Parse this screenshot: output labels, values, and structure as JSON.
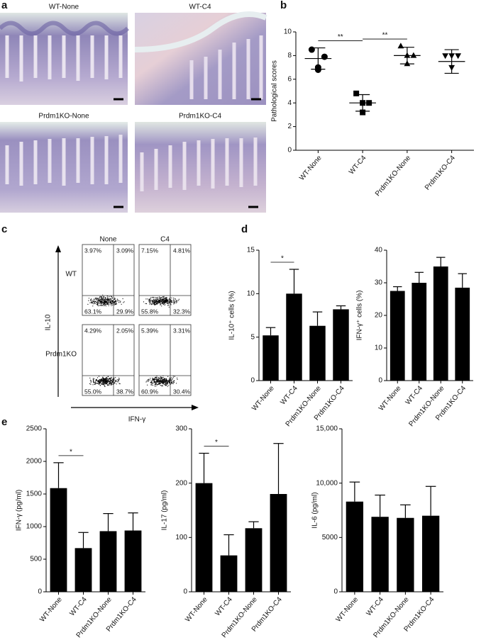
{
  "panel_labels": [
    "a",
    "b",
    "c",
    "d",
    "e"
  ],
  "histology": {
    "titles": [
      "WT-None",
      "WT-C4",
      "Prdm1KO-None",
      "Prdm1KO-C4"
    ]
  },
  "flow": {
    "columns": [
      "None",
      "C4"
    ],
    "rows": [
      "WT",
      "Prdm1KO"
    ],
    "y_label": "IL-10",
    "x_label": "IFN-γ",
    "quadrants": [
      [
        [
          "3.97%",
          "3.09%",
          "63.1%",
          "29.9%"
        ],
        [
          "7.15%",
          "4.81%",
          "55.8%",
          "32.3%"
        ]
      ],
      [
        [
          "4.29%",
          "2.05%",
          "55.0%",
          "38.7%"
        ],
        [
          "5.39%",
          "3.31%",
          "60.9%",
          "30.4%"
        ]
      ]
    ]
  },
  "chart_data": [
    {
      "type": "dot",
      "ylabel": "Pathological scores",
      "categories": [
        "WT-None",
        "WT-C4",
        "Prdm1KO-None",
        "Prdm1KO-C4"
      ],
      "markers": [
        "circle",
        "square",
        "triangle",
        "triangle-down"
      ],
      "points": [
        [
          8.5,
          7.9,
          7.0,
          6.8
        ],
        [
          4.8,
          4.0,
          4.0,
          3.2
        ],
        [
          8.8,
          8.0,
          7.3,
          8.0
        ],
        [
          8.0,
          8.0,
          8.0,
          7.0
        ]
      ],
      "means": [
        7.75,
        4.0,
        8.0,
        7.5
      ],
      "sds": [
        0.9,
        0.7,
        0.7,
        1.0
      ],
      "color": "#000000",
      "ylim": [
        0,
        10
      ],
      "yticks": [
        0,
        2,
        4,
        6,
        8,
        10
      ],
      "annotations": [
        {
          "text": "**",
          "categories": [
            "WT-None",
            "WT-C4"
          ]
        },
        {
          "text": "**",
          "categories": [
            "WT-C4",
            "Prdm1KO-None"
          ]
        }
      ]
    },
    {
      "type": "bar",
      "ylabel": "IL-10⁺ cells (%)",
      "categories": [
        "WT-None",
        "WT-C4",
        "Prdm1KO-None",
        "Prdm1KO-C4"
      ],
      "values": [
        5.2,
        10,
        6.3,
        8.2
      ],
      "errors": [
        0.9,
        2.8,
        1.6,
        0.4
      ],
      "color": "#000000",
      "ylim": [
        0,
        15
      ],
      "yticks": [
        0,
        5,
        10,
        15
      ],
      "annotations": [
        {
          "text": "*",
          "categories": [
            "WT-None",
            "WT-C4"
          ]
        }
      ]
    },
    {
      "type": "bar",
      "ylabel": "IFN-γ⁺ cells (%)",
      "categories": [
        "WT-None",
        "WT-C4",
        "Prdm1KO-None",
        "Prdm1KO-C4"
      ],
      "values": [
        27.5,
        30,
        35,
        28.5
      ],
      "errors": [
        1.3,
        3.2,
        2.8,
        4.3
      ],
      "color": "#000000",
      "ylim": [
        0,
        40
      ],
      "yticks": [
        0,
        10,
        20,
        30,
        40
      ],
      "annotations": []
    },
    {
      "type": "bar",
      "ylabel": "IFN-γ (pg/ml)",
      "categories": [
        "WT-None",
        "WT-C4",
        "Prdm1KO-None",
        "Prdm1KO-C4"
      ],
      "values": [
        1590,
        670,
        930,
        940
      ],
      "errors": [
        390,
        240,
        270,
        270
      ],
      "color": "#000000",
      "ylim": [
        0,
        2500
      ],
      "yticks": [
        0,
        500,
        1000,
        1500,
        2000,
        2500
      ],
      "annotations": [
        {
          "text": "*",
          "categories": [
            "WT-None",
            "WT-C4"
          ]
        }
      ]
    },
    {
      "type": "bar",
      "ylabel": "IL-17 (pg/ml)",
      "categories": [
        "WT-None",
        "WT-C4",
        "Prdm1KO-None",
        "Prdm1KO-C4"
      ],
      "values": [
        200,
        67,
        117,
        180
      ],
      "errors": [
        55,
        38,
        12,
        93
      ],
      "color": "#000000",
      "ylim": [
        0,
        300
      ],
      "yticks": [
        0,
        100,
        200,
        300
      ],
      "annotations": [
        {
          "text": "*",
          "categories": [
            "WT-None",
            "WT-C4"
          ]
        }
      ]
    },
    {
      "type": "bar",
      "ylabel": "IL-6 (pg/ml)",
      "categories": [
        "WT-None",
        "WT-C4",
        "Prdm1KO-None",
        "Prdm1KO-C4"
      ],
      "values": [
        8300,
        6900,
        6800,
        7000
      ],
      "errors": [
        1800,
        2000,
        1200,
        2700
      ],
      "color": "#000000",
      "ylim": [
        0,
        15000
      ],
      "yticks": [
        0,
        5000,
        {
          "value": 10000,
          "label": "10,000"
        },
        {
          "value": 15000,
          "label": "15,000"
        }
      ],
      "annotations": []
    }
  ]
}
